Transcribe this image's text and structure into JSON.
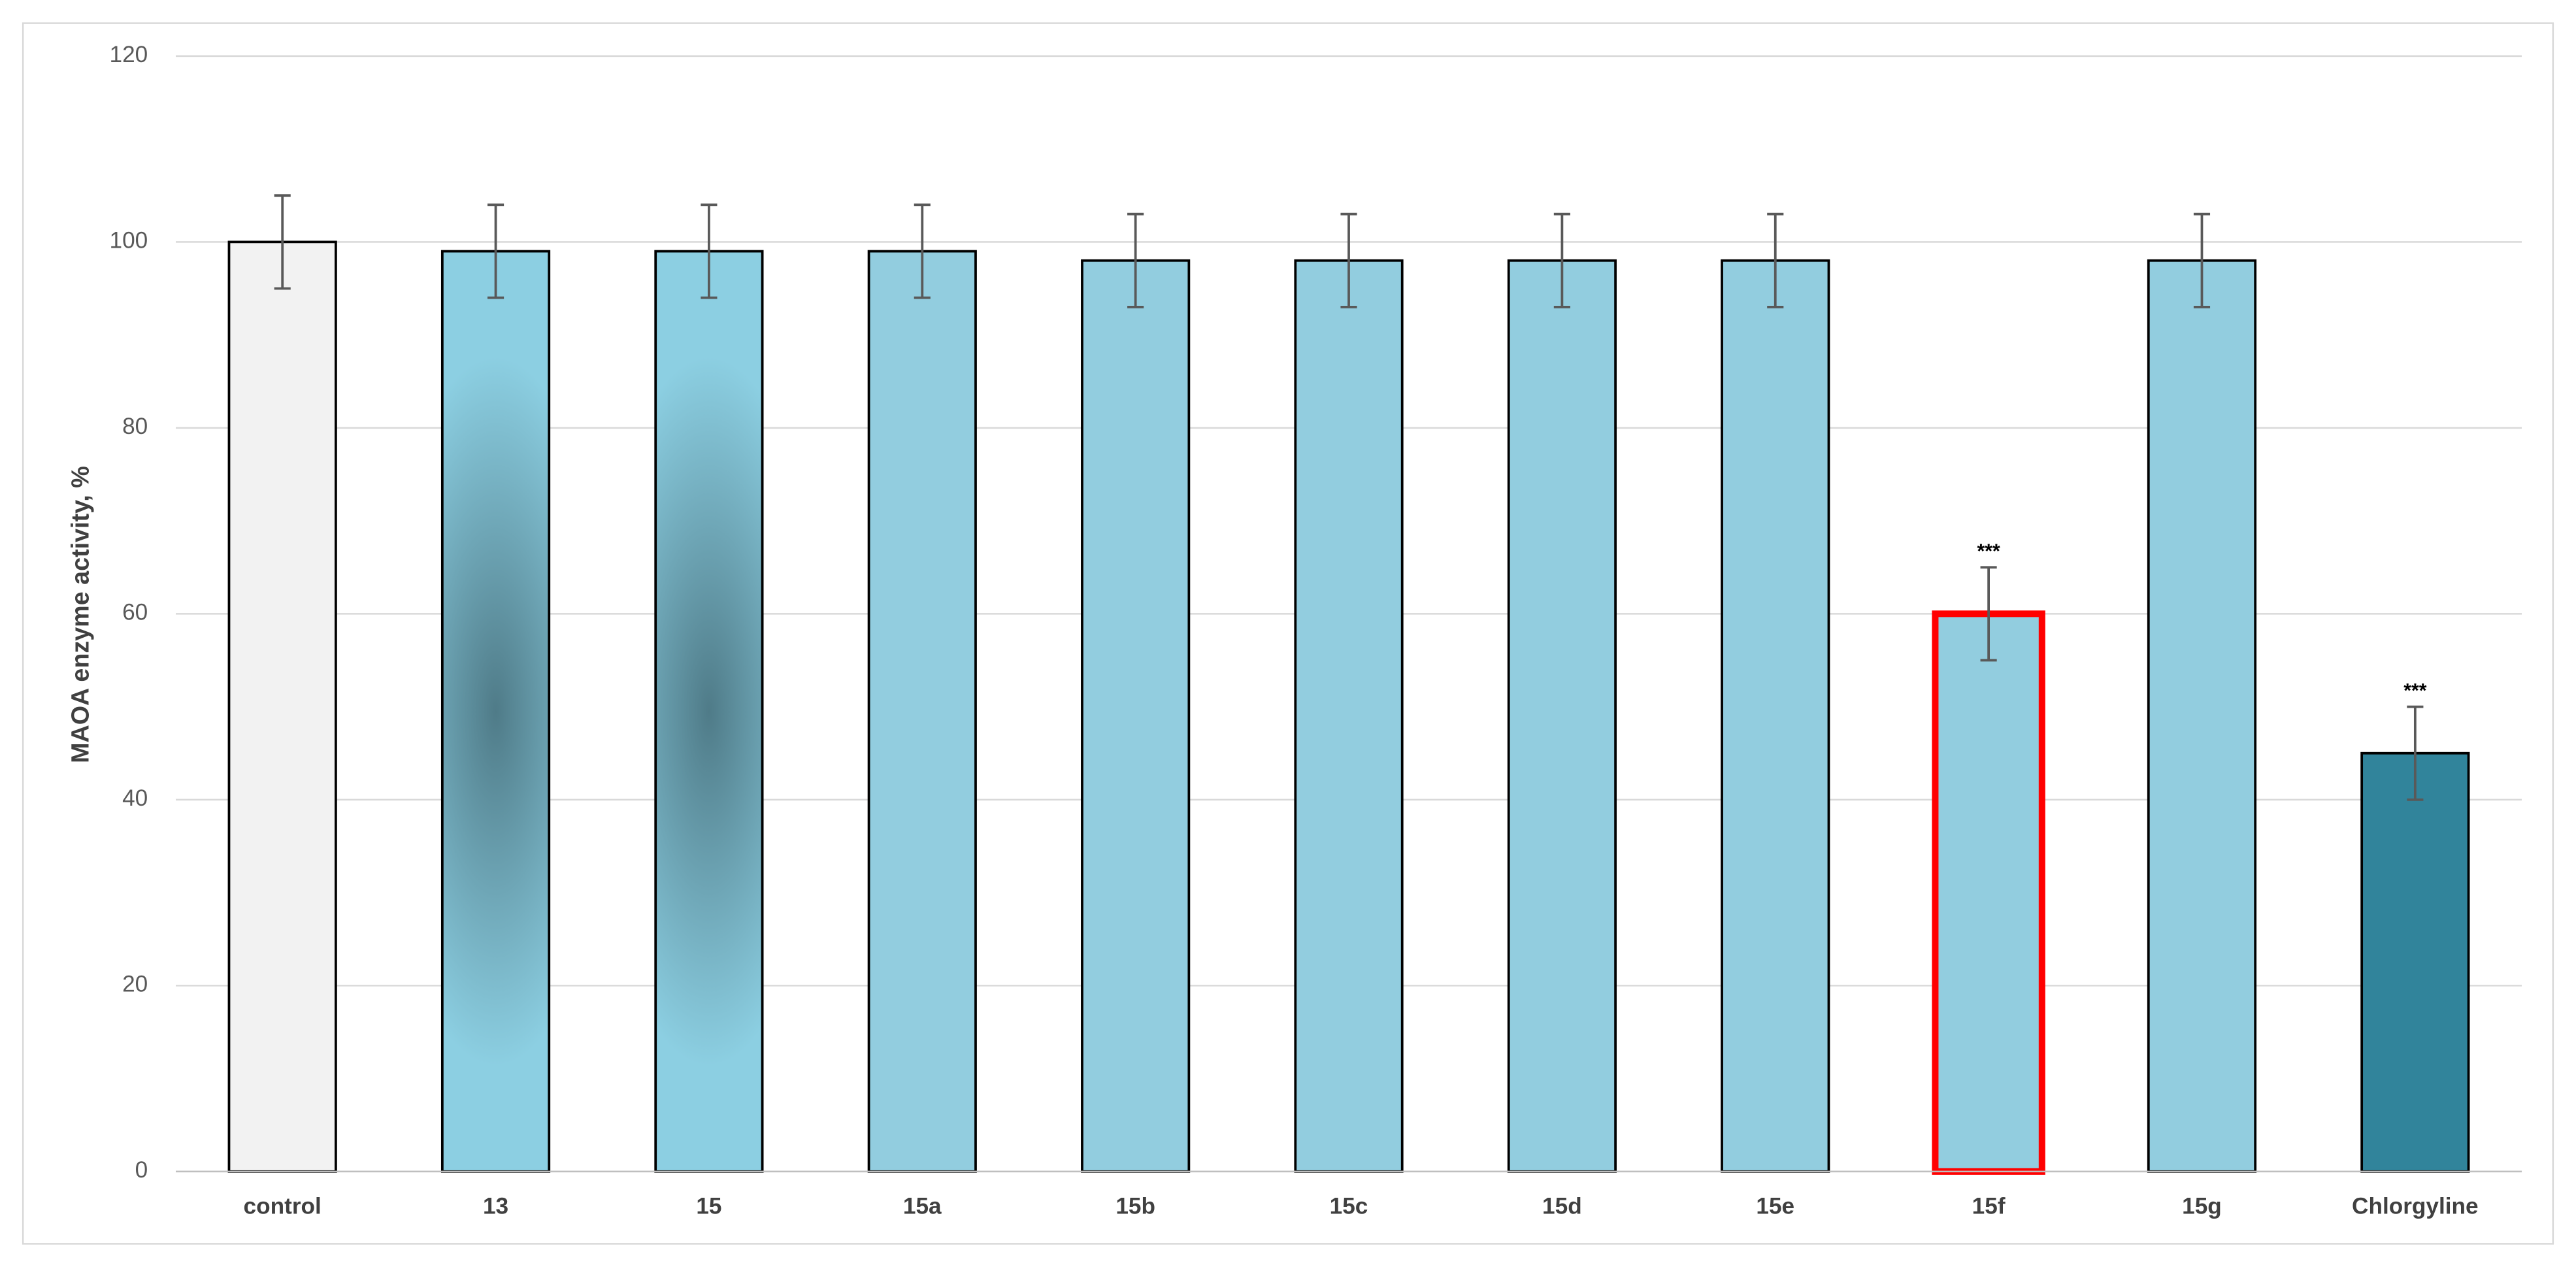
{
  "chart_data": {
    "type": "bar",
    "ylabel": "MAOA enzyme activity, %",
    "categories": [
      "control",
      "13",
      "15",
      "15a",
      "15b",
      "15c",
      "15d",
      "15e",
      "15f",
      "15g",
      "Chlorgyline"
    ],
    "values": [
      100,
      99,
      99,
      99,
      98,
      98,
      98,
      98,
      60,
      98,
      45
    ],
    "errors": [
      5,
      5,
      5,
      5,
      5,
      5,
      5,
      5,
      5,
      5,
      5
    ],
    "value_annotations": [
      null,
      null,
      null,
      null,
      null,
      null,
      null,
      null,
      "***",
      null,
      "***"
    ],
    "colors": [
      "#f2f2f2",
      {
        "center": "#4f7b88",
        "edge": "#8ccfe2"
      },
      {
        "center": "#4f7b88",
        "edge": "#8ccfe2"
      },
      "#92cddf",
      "#92cddf",
      "#92cddf",
      "#92cddf",
      "#92cddf",
      "#92cddf",
      "#92cddf",
      "#31849b"
    ],
    "edgecolors": [
      "#000000",
      "#000000",
      "#000000",
      "#000000",
      "#000000",
      "#000000",
      "#000000",
      "#000000",
      "#ff0000",
      "#000000",
      "#000000"
    ],
    "ylim": [
      0,
      120
    ],
    "yticks": [
      0,
      20,
      40,
      60,
      80,
      100,
      120
    ],
    "grid": true
  }
}
